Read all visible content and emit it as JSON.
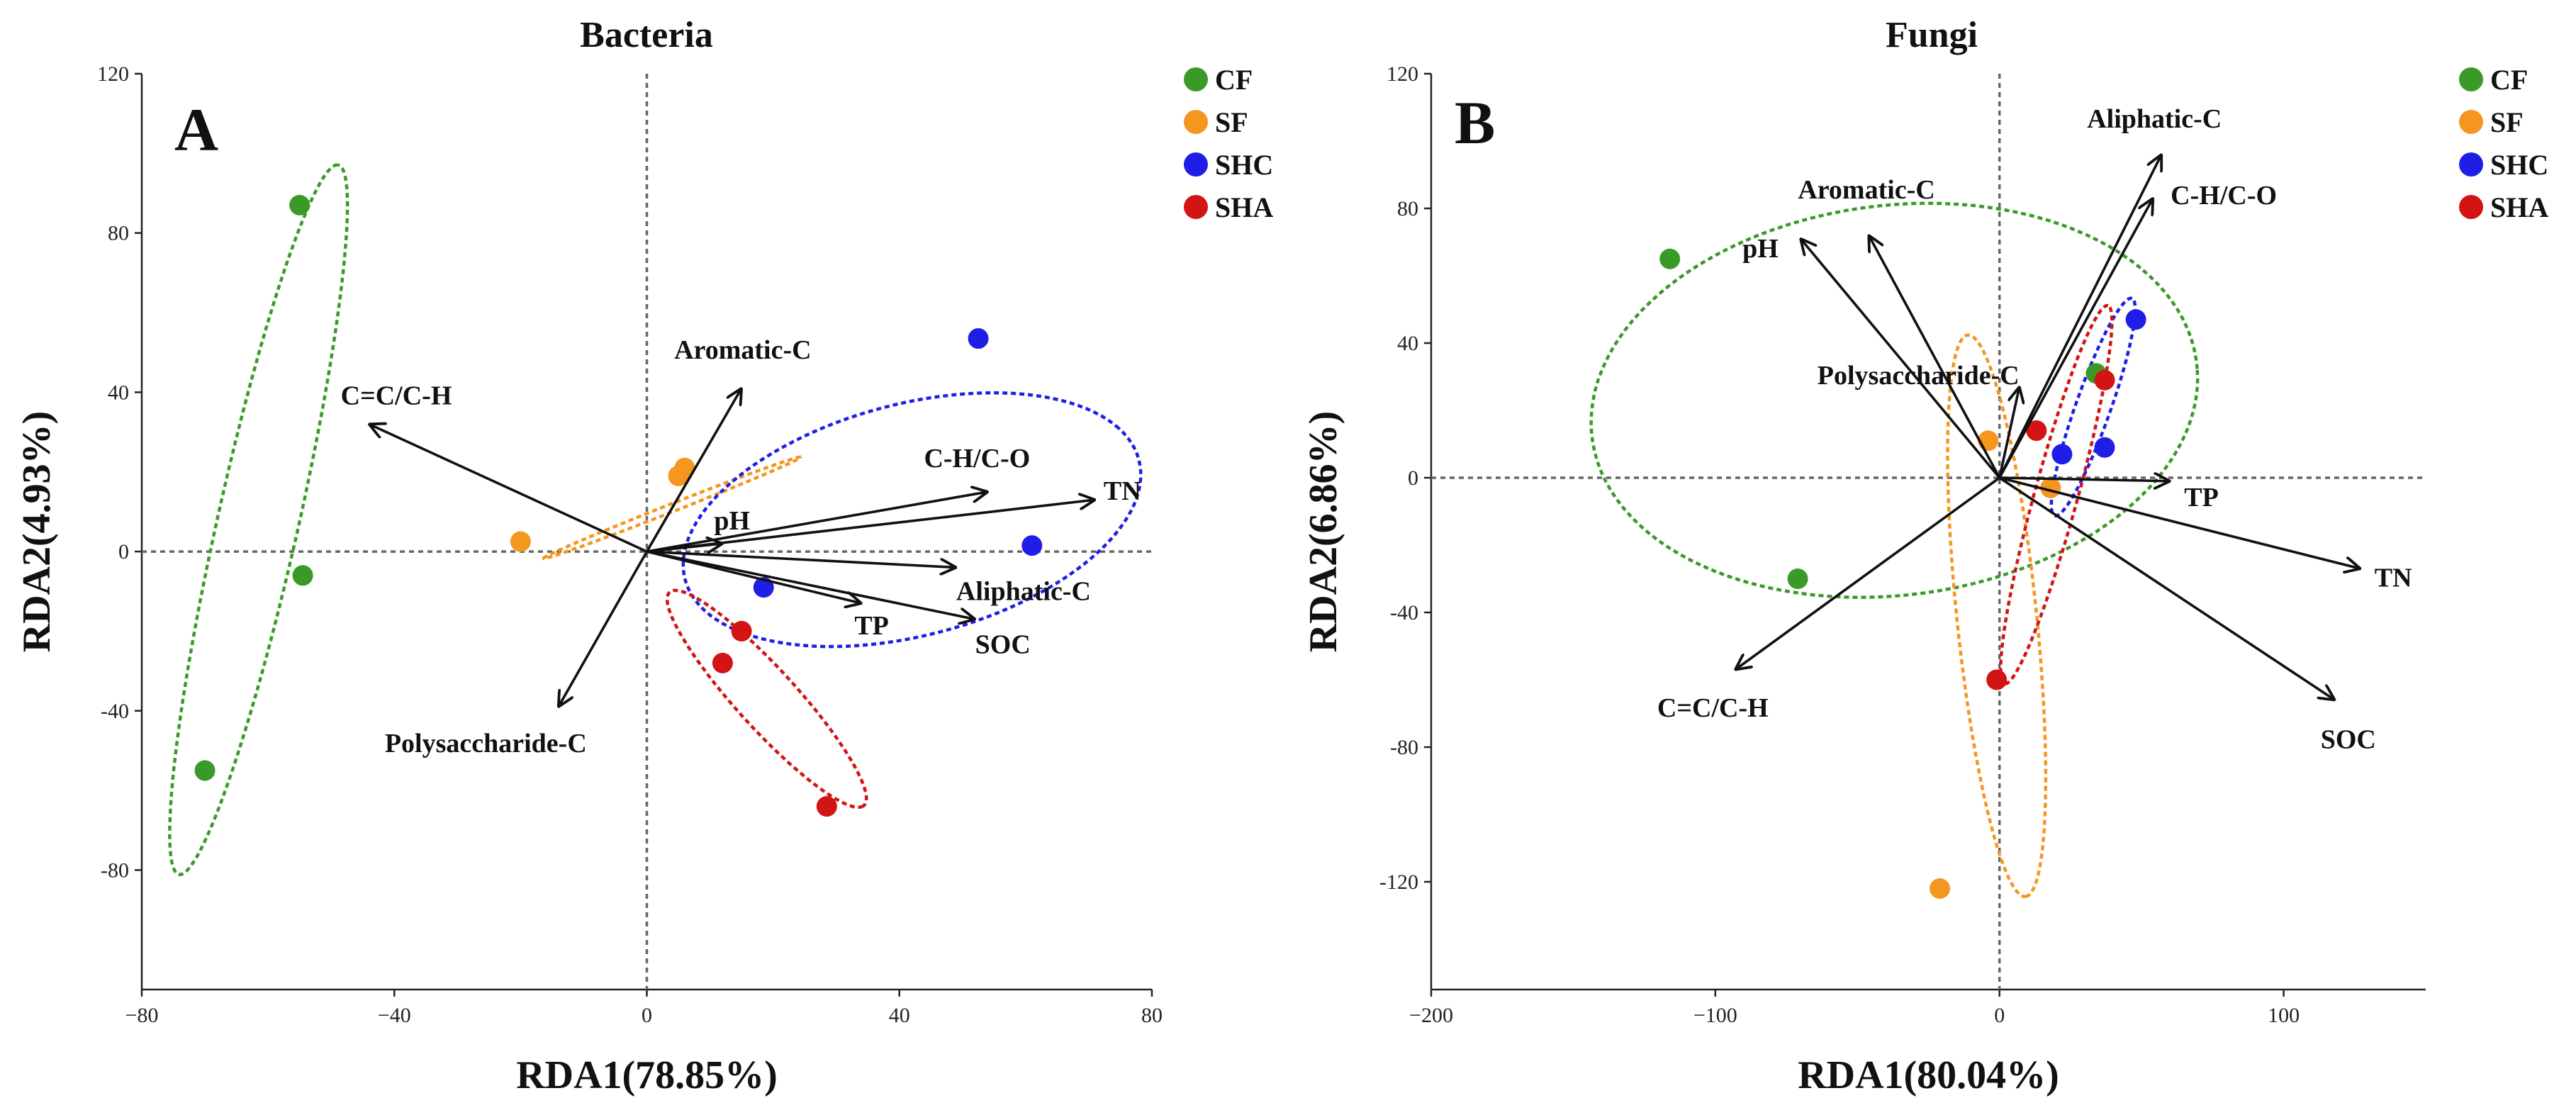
{
  "chart_data": [
    {
      "type": "scatter",
      "title": "Bacteria",
      "panel_label": "A",
      "xlabel": "RDA1(78.85%)",
      "ylabel": "RDA2(4.93%)",
      "xlim": [
        -80,
        80
      ],
      "ylim": [
        -110,
        120
      ],
      "xticks": [
        -80,
        -40,
        0,
        40,
        80
      ],
      "yticks": [
        -80,
        -40,
        0,
        40,
        80,
        120
      ],
      "legend": [
        {
          "name": "CF",
          "color": "#3a9a28"
        },
        {
          "name": "SF",
          "color": "#f5961e"
        },
        {
          "name": "SHC",
          "color": "#1e1ee6"
        },
        {
          "name": "SHA",
          "color": "#d21414"
        }
      ],
      "series": [
        {
          "name": "CF",
          "points": [
            [
              -55,
              87
            ],
            [
              -54.5,
              -6
            ],
            [
              -70,
              -55
            ]
          ]
        },
        {
          "name": "SF",
          "points": [
            [
              -20,
              2.5
            ],
            [
              5,
              19
            ],
            [
              6,
              21
            ]
          ]
        },
        {
          "name": "SHC",
          "points": [
            [
              52.5,
              53.5
            ],
            [
              61,
              1.5
            ],
            [
              18.5,
              -9
            ]
          ]
        },
        {
          "name": "SHA",
          "points": [
            [
              15,
              -20
            ],
            [
              12,
              -28
            ],
            [
              28.5,
              -64
            ]
          ]
        }
      ],
      "ellipses": [
        {
          "group": "CF",
          "cx": -61.5,
          "cy": 8,
          "rx": 90,
          "ry": 6.5,
          "angle_deg": 82
        },
        {
          "group": "SF",
          "cx": 4,
          "cy": 11,
          "rx": 24,
          "ry": 0.9,
          "angle_deg": 32
        },
        {
          "group": "SHC",
          "cx": 42,
          "cy": 8,
          "rx": 40,
          "ry": 27,
          "angle_deg": 35
        },
        {
          "group": "SHA",
          "cx": 19,
          "cy": -37,
          "rx": 31,
          "ry": 5.5,
          "angle_deg": -61
        }
      ],
      "vectors": [
        {
          "name": "C=C/C-H",
          "x": -44,
          "y": 32
        },
        {
          "name": "Aromatic-C",
          "x": 15,
          "y": 41
        },
        {
          "name": "C-H/C-O",
          "x": 54,
          "y": 15
        },
        {
          "name": "TN",
          "x": 71,
          "y": 13
        },
        {
          "name": "pH",
          "x": 12,
          "y": 2
        },
        {
          "name": "Aliphatic-C",
          "x": 49,
          "y": -4
        },
        {
          "name": "TP",
          "x": 34,
          "y": -13
        },
        {
          "name": "SOC",
          "x": 52,
          "y": -17
        },
        {
          "name": "Polysaccharide-C",
          "x": -14,
          "y": -39
        }
      ]
    },
    {
      "type": "scatter",
      "title": "Fungi",
      "panel_label": "B",
      "xlabel": "RDA1(80.04%)",
      "ylabel": "RDA2(6.86%)",
      "xlim": [
        -200,
        150
      ],
      "ylim": [
        -152,
        120
      ],
      "xticks": [
        -200,
        -100,
        0,
        100
      ],
      "yticks": [
        -120,
        -80,
        -40,
        0,
        40,
        80,
        120
      ],
      "legend": [
        {
          "name": "CF",
          "color": "#3a9a28"
        },
        {
          "name": "SF",
          "color": "#f5961e"
        },
        {
          "name": "SHC",
          "color": "#1e1ee6"
        },
        {
          "name": "SHA",
          "color": "#d21414"
        }
      ],
      "series": [
        {
          "name": "CF",
          "points": [
            [
              -116,
              65
            ],
            [
              -71,
              -30
            ],
            [
              34,
              31
            ]
          ]
        },
        {
          "name": "SF",
          "points": [
            [
              -4,
              11
            ],
            [
              18,
              -3
            ],
            [
              -21,
              -122
            ]
          ]
        },
        {
          "name": "SHC",
          "points": [
            [
              22,
              7
            ],
            [
              37,
              9
            ],
            [
              48,
              47
            ]
          ]
        },
        {
          "name": "SHA",
          "points": [
            [
              13,
              14
            ],
            [
              37,
              29
            ],
            [
              -1,
              -60
            ]
          ]
        }
      ],
      "ellipses": [
        {
          "group": "CF",
          "cx": -37,
          "cy": 23,
          "rx": 107,
          "ry": 58,
          "angle_deg": 5
        },
        {
          "group": "SF",
          "cx": -1,
          "cy": -41,
          "rx": 84,
          "ry": 14,
          "angle_deg": -83
        },
        {
          "group": "SHC",
          "cx": 33,
          "cy": 21,
          "rx": 35,
          "ry": 6,
          "angle_deg": 67
        },
        {
          "group": "SHA",
          "cx": 20,
          "cy": -5,
          "rx": 59,
          "ry": 7.5,
          "angle_deg": 72
        }
      ],
      "vectors": [
        {
          "name": "Aliphatic-C",
          "x": 57,
          "y": 96
        },
        {
          "name": "C-H/C-O",
          "x": 54,
          "y": 83
        },
        {
          "name": "Aromatic-C",
          "x": -46,
          "y": 72
        },
        {
          "name": "pH",
          "x": -70,
          "y": 71
        },
        {
          "name": "Polysaccharide-C",
          "x": 7,
          "y": 27
        },
        {
          "name": "TP",
          "x": 60,
          "y": -1
        },
        {
          "name": "TN",
          "x": 127,
          "y": -27
        },
        {
          "name": "SOC",
          "x": 118,
          "y": -66
        },
        {
          "name": "C=C/C-H",
          "x": -93,
          "y": -57
        }
      ]
    }
  ]
}
